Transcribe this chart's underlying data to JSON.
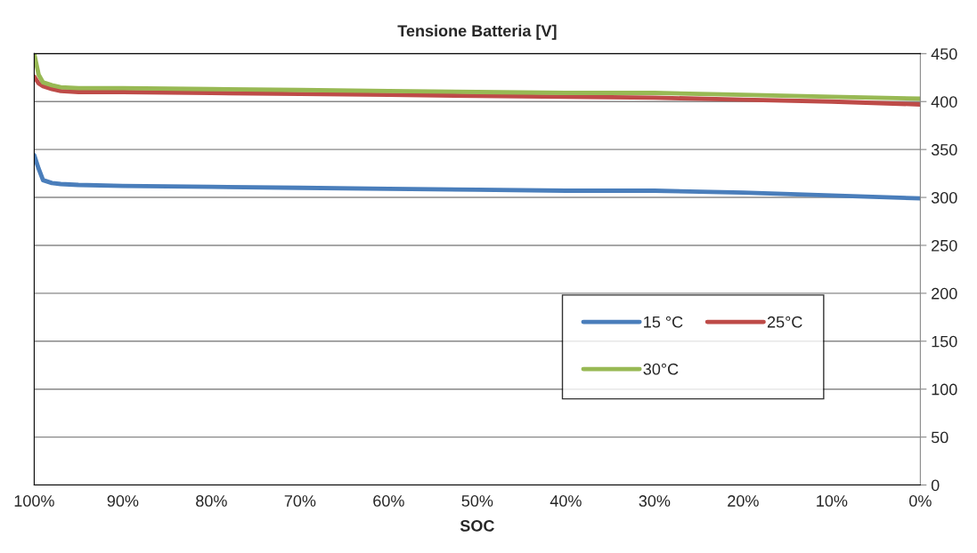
{
  "chart_data": {
    "type": "line",
    "title": "Tensione Batteria [V]",
    "xlabel": "SOC",
    "xlim": [
      100,
      0
    ],
    "xticks": [
      {
        "value": 100,
        "label": "100%"
      },
      {
        "value": 90,
        "label": "90%"
      },
      {
        "value": 80,
        "label": "80%"
      },
      {
        "value": 70,
        "label": "70%"
      },
      {
        "value": 60,
        "label": "60%"
      },
      {
        "value": 50,
        "label": "50%"
      },
      {
        "value": 40,
        "label": "40%"
      },
      {
        "value": 30,
        "label": "30%"
      },
      {
        "value": 20,
        "label": "20%"
      },
      {
        "value": 10,
        "label": "10%"
      },
      {
        "value": 0,
        "label": "0%"
      }
    ],
    "ylim": [
      0,
      450
    ],
    "yticks": [
      0,
      50,
      100,
      150,
      200,
      250,
      300,
      350,
      400,
      450
    ],
    "grid": "y",
    "legend": "right",
    "marker": "none",
    "line_style": "solid",
    "x": [
      100,
      99.5,
      99,
      98,
      97,
      95,
      90,
      80,
      70,
      60,
      50,
      40,
      30,
      20,
      10,
      0
    ],
    "series": [
      {
        "name": "15 °C",
        "color": "#4a7ebb",
        "values": [
          344,
          330,
          318,
          315,
          314,
          313,
          312,
          311,
          310,
          309,
          308,
          307,
          307,
          305,
          302,
          299
        ]
      },
      {
        "name": "25°C",
        "color": "#be4b48",
        "values": [
          426,
          419,
          416,
          413,
          411,
          410,
          410,
          409,
          408,
          407,
          406,
          405,
          404,
          402,
          400,
          397
        ]
      },
      {
        "name": "30°C",
        "color": "#98b954",
        "values": [
          450,
          428,
          420,
          417,
          415,
          414,
          414,
          413,
          412,
          411,
          410,
          409,
          409,
          407,
          405,
          403
        ]
      }
    ]
  }
}
